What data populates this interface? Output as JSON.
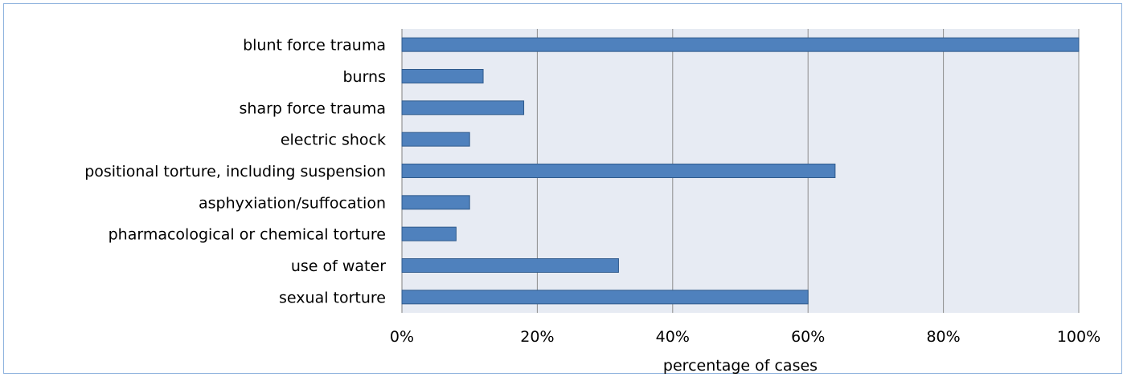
{
  "chart_data": {
    "type": "bar",
    "orientation": "horizontal",
    "categories": [
      "blunt force trauma",
      "burns",
      "sharp force trauma",
      "electric shock",
      "positional torture, including suspension",
      "asphyxiation/suffocation",
      "pharmacological or chemical torture",
      "use of water",
      "sexual torture"
    ],
    "values": [
      100,
      12,
      18,
      10,
      64,
      10,
      8,
      32,
      60
    ],
    "xlabel": "percentage of cases",
    "ylabel": "",
    "xlim": [
      0,
      100
    ],
    "x_ticks": [
      0,
      20,
      40,
      60,
      80,
      100
    ],
    "x_tick_labels": [
      "0%",
      "20%",
      "40%",
      "60%",
      "80%",
      "100%"
    ],
    "grid": "vertical",
    "legend": "none",
    "colors": {
      "bar_fill": "#4f81bd",
      "bar_stroke": "#2f5a8c",
      "plot_background": "#e7ebf3",
      "gridline": "#8c8c8c",
      "frame_border": "#8fb3de"
    }
  }
}
